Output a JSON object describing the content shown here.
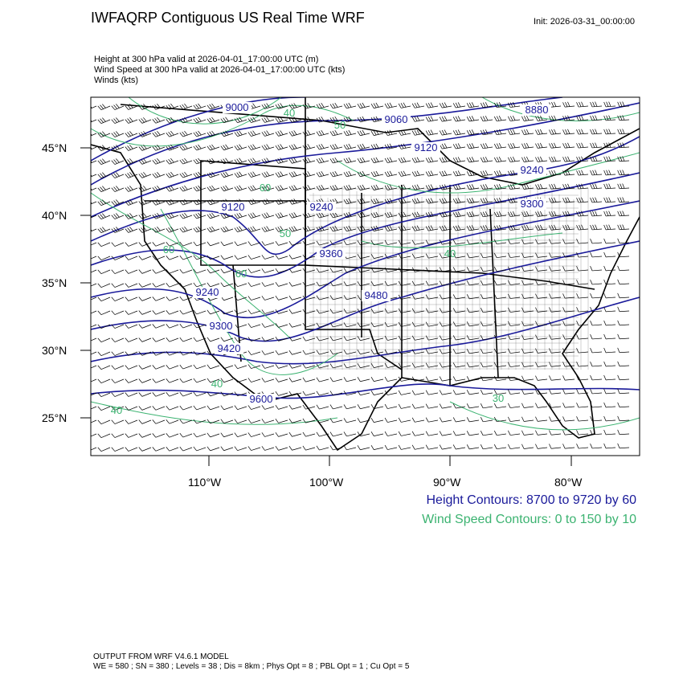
{
  "header": {
    "title": "IWFAQRP Contiguous US Real Time WRF",
    "init": "Init: 2026-03-31_00:00:00",
    "fields": [
      "Height at 300 hPa valid at 2026-04-01_17:00:00 UTC   (m)",
      "Wind Speed at 300 hPa valid at 2026-04-01_17:00:00 UTC   (kts)",
      "Winds   (kts)"
    ]
  },
  "map": {
    "lat_ticks": [
      "45°N",
      "40°N",
      "35°N",
      "30°N",
      "25°N"
    ],
    "lon_ticks": [
      "110°W",
      "100°W",
      "90°W",
      "80°W"
    ],
    "height_labels": [
      "9000",
      "8880",
      "9060",
      "9120",
      "9120",
      "9240",
      "9240",
      "9300",
      "9360",
      "9240",
      "9300",
      "9420",
      "9480",
      "9600"
    ],
    "speed_labels": [
      "40",
      "50",
      "60",
      "60",
      "60",
      "50",
      "40",
      "40",
      "30",
      "40"
    ],
    "colors": {
      "height": "#1a1a9a",
      "speed": "#3cb371",
      "barbs": "#000000"
    }
  },
  "legend": {
    "height": "Height Contours: 8700 to 9720 by 60",
    "speed": "Wind Speed Contours: 0 to 150 by 10"
  },
  "footer": {
    "line1": "OUTPUT FROM WRF V4.6.1 MODEL",
    "line2": "WE = 580 ; SN = 380 ; Levels = 38 ; Dis = 8km ; Phys Opt = 8 ; PBL Opt = 1 ; Cu Opt = 5"
  }
}
